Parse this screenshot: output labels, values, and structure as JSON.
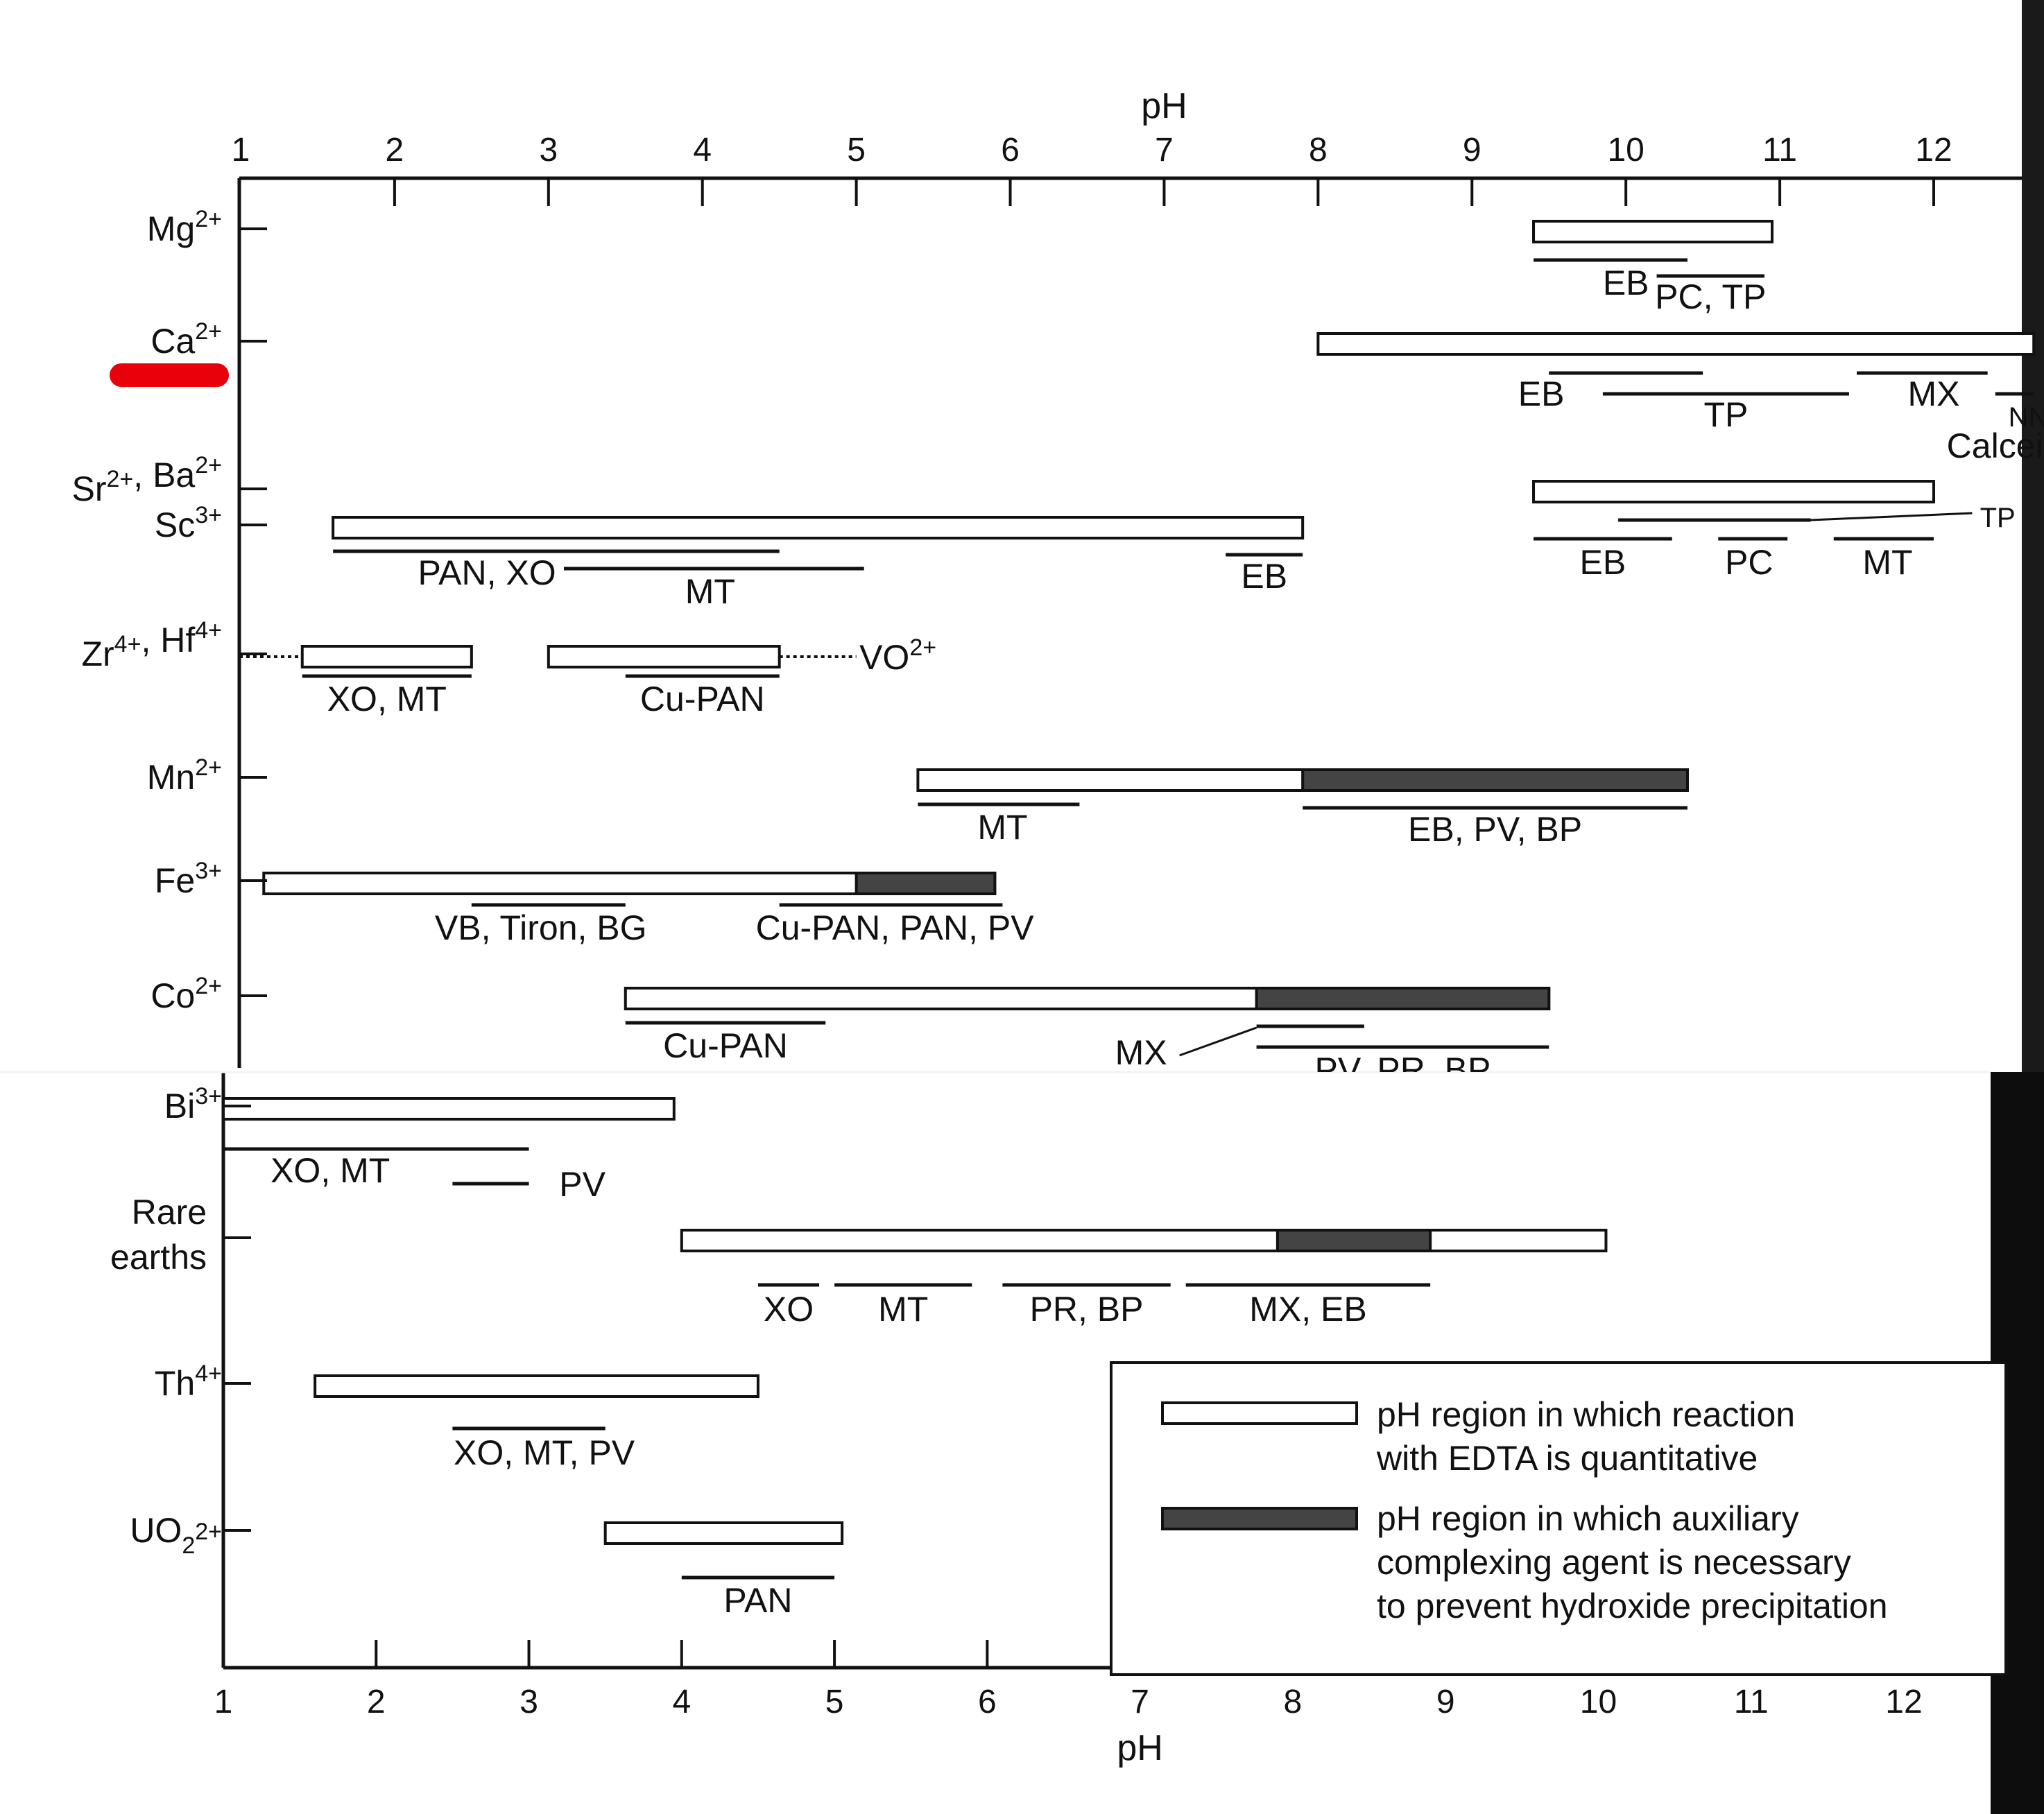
{
  "chart_data": {
    "type": "range",
    "xlabel": "pH",
    "xlim": [
      1,
      12.65
    ],
    "top_ticks": [
      "1",
      "2",
      "3",
      "4",
      "5",
      "6",
      "7",
      "8",
      "9",
      "10",
      "11",
      "12"
    ],
    "bottom_ticks": [
      "1",
      "2",
      "3",
      "4",
      "5",
      "6",
      "7",
      "8",
      "9",
      "10",
      "11",
      "12"
    ],
    "ions": [
      {
        "id": "mg",
        "label": "Mg",
        "sup": "2+"
      },
      {
        "id": "ca",
        "label": "Ca",
        "sup": "2+",
        "highlight": "#e8000b"
      },
      {
        "id": "srba",
        "label": "Sr",
        "sup": "2+",
        "label2": ", Ba",
        "sup2": "2+"
      },
      {
        "id": "sc",
        "label": "Sc",
        "sup": "3+"
      },
      {
        "id": "zr",
        "label": "Zr",
        "sup": "4+",
        "label2": ", Hf",
        "sup2": "4+"
      },
      {
        "id": "mn",
        "label": "Mn",
        "sup": "2+"
      },
      {
        "id": "fe",
        "label": "Fe",
        "sup": "3+"
      },
      {
        "id": "co",
        "label": "Co",
        "sup": "2+"
      },
      {
        "id": "bi",
        "label": "Bi",
        "sup": "3+"
      },
      {
        "id": "re",
        "label": "Rare",
        "label2": "earths"
      },
      {
        "id": "th",
        "label": "Th",
        "sup": "4+"
      },
      {
        "id": "uo",
        "label": "UO",
        "sup": "2+",
        "sub": "2"
      }
    ],
    "bars": [
      {
        "ion": "mg",
        "from": 9.4,
        "to": 10.95,
        "shaded_from": null
      },
      {
        "ion": "ca",
        "from": 8.0,
        "to": 12.65,
        "shaded_from": null
      },
      {
        "ion": "srba",
        "from": 9.4,
        "to": 12.0,
        "shaded_from": null
      },
      {
        "ion": "sc",
        "from": 1.6,
        "to": 7.9,
        "shaded_from": null
      },
      {
        "ion": "zr",
        "from": 1.4,
        "to": 2.5,
        "shaded_from": null
      },
      {
        "ion": "zr",
        "from": 3.0,
        "to": 4.5,
        "shaded_from": null
      },
      {
        "ion": "mn",
        "from": 5.4,
        "to": 10.4,
        "shaded_from": 7.9
      },
      {
        "ion": "fe",
        "from": 1.15,
        "to": 5.9,
        "shaded_from": 5.0
      },
      {
        "ion": "co",
        "from": 3.5,
        "to": 9.5,
        "shaded_from": 7.6
      },
      {
        "ion": "bi",
        "from": 1.0,
        "to": 3.95,
        "shaded_from": null
      },
      {
        "ion": "re",
        "from": 4.0,
        "to": 10.05,
        "shaded_from": 7.9,
        "shaded_to": 8.9
      },
      {
        "ion": "th",
        "from": 1.6,
        "to": 4.5,
        "shaded_from": null
      },
      {
        "ion": "uo",
        "from": 3.5,
        "to": 5.05,
        "shaded_from": null
      }
    ],
    "indicators": [
      {
        "ion": "mg",
        "label": "EB",
        "from": 9.4,
        "to": 10.4
      },
      {
        "ion": "mg",
        "label": "PC, TP",
        "from": 10.2,
        "to": 10.9
      },
      {
        "ion": "ca",
        "label": "EB",
        "from": 9.5,
        "to": 10.5
      },
      {
        "ion": "ca",
        "label": "TP",
        "from": 9.85,
        "to": 11.45
      },
      {
        "ion": "ca",
        "label": "MX",
        "from": 11.5,
        "to": 12.35
      },
      {
        "ion": "ca",
        "label": "NN, Calcein",
        "from": 12.4,
        "to": 12.65
      },
      {
        "ion": "srba",
        "label": "TP",
        "from": 9.95,
        "to": 11.2
      },
      {
        "ion": "srba",
        "label": "EB",
        "from": 9.4,
        "to": 10.3
      },
      {
        "ion": "srba",
        "label": "PC",
        "from": 10.6,
        "to": 11.05
      },
      {
        "ion": "srba",
        "label": "MT",
        "from": 11.35,
        "to": 12.0
      },
      {
        "ion": "sc",
        "label": "PAN, XO",
        "from": 1.6,
        "to": 4.5
      },
      {
        "ion": "sc",
        "label": "MT",
        "from": 3.1,
        "to": 5.05
      },
      {
        "ion": "sc",
        "label": "EB",
        "from": 7.4,
        "to": 7.9
      },
      {
        "ion": "zr",
        "label": "XO, MT",
        "from": 1.4,
        "to": 2.5
      },
      {
        "ion": "zr",
        "label": "Cu-PAN",
        "from": 3.5,
        "to": 4.5
      },
      {
        "ion": "mn",
        "label": "MT",
        "from": 5.4,
        "to": 6.45
      },
      {
        "ion": "mn",
        "label": "EB, PV, BP",
        "from": 7.9,
        "to": 10.4
      },
      {
        "ion": "fe",
        "label": "VB, Tiron, BG",
        "from": 2.5,
        "to": 3.5
      },
      {
        "ion": "fe",
        "label": "Cu-PAN, PAN, PV",
        "from": 4.5,
        "to": 5.95
      },
      {
        "ion": "co",
        "label": "Cu-PAN",
        "from": 3.5,
        "to": 4.8
      },
      {
        "ion": "co",
        "label": "MX",
        "from": 7.6,
        "to": 8.3
      },
      {
        "ion": "co",
        "label": "PV, PR, BP",
        "from": 7.6,
        "to": 9.5
      },
      {
        "ion": "bi",
        "label": "XO, MT",
        "from": 1.0,
        "to": 3.0
      },
      {
        "ion": "bi",
        "label": "PV",
        "from": 2.5,
        "to": 3.0
      },
      {
        "ion": "re",
        "label": "XO",
        "from": 4.5,
        "to": 4.9
      },
      {
        "ion": "re",
        "label": "MT",
        "from": 5.0,
        "to": 5.9
      },
      {
        "ion": "re",
        "label": "PR, BP",
        "from": 6.1,
        "to": 7.2
      },
      {
        "ion": "re",
        "label": "MX, EB",
        "from": 7.3,
        "to": 8.9
      },
      {
        "ion": "th",
        "label": "XO, MT, PV",
        "from": 2.5,
        "to": 3.5
      },
      {
        "ion": "uo",
        "label": "PAN",
        "from": 4.0,
        "to": 5.0
      }
    ],
    "dotted_ext": {
      "label": "VO",
      "sup": "2+"
    },
    "legend": {
      "open": [
        "pH region in which reaction",
        "with EDTA is quantitative"
      ],
      "shaded": [
        "pH region in which auxiliary",
        "complexing agent is necessary",
        "to prevent hydroxide precipitation"
      ]
    }
  }
}
